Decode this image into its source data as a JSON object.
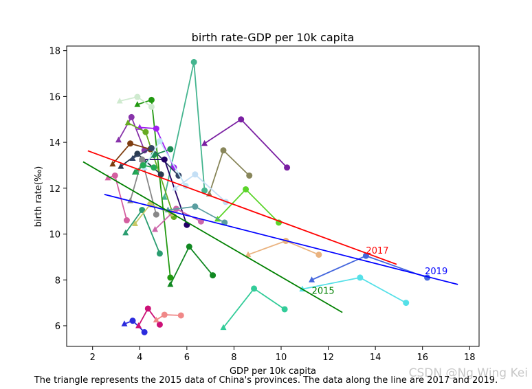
{
  "chart_data": {
    "type": "scatter",
    "title": "birth rate-GDP per 10k capita",
    "xlabel": "GDP per 10k capita",
    "ylabel": "birth rate(‰)",
    "xlim": [
      0.9,
      18.4
    ],
    "ylim": [
      5.1,
      18.2
    ],
    "xticks": [
      2,
      4,
      6,
      8,
      10,
      12,
      14,
      16,
      18
    ],
    "yticks": [
      6,
      8,
      10,
      12,
      14,
      16,
      18
    ],
    "grid": false,
    "caption": "The triangle represents the 2015 data of China's provinces. The data along the line are 2017 and 2019.",
    "watermark": "CSDN @Ng Wing Kei",
    "trend_lines": [
      {
        "label": "2017",
        "color": "#ff0000",
        "x": [
          1.8,
          14.9
        ],
        "y": [
          13.63,
          8.68
        ],
        "label_pos": [
          13.6,
          9.15
        ]
      },
      {
        "label": "2019",
        "color": "#0000ff",
        "x": [
          2.5,
          17.5
        ],
        "y": [
          11.73,
          7.8
        ],
        "label_pos": [
          16.1,
          8.25
        ]
      },
      {
        "label": "2015",
        "color": "#008000",
        "x": [
          1.6,
          12.6
        ],
        "y": [
          13.15,
          6.58
        ],
        "label_pos": [
          11.3,
          7.4
        ]
      }
    ],
    "provinces": [
      {
        "color": "#44b58f",
        "points": [
          [
            5.05,
            11.6
          ],
          [
            6.3,
            17.5
          ],
          [
            6.75,
            11.9
          ]
        ]
      },
      {
        "color": "#7a1fa2",
        "points": [
          [
            6.75,
            13.95
          ],
          [
            8.3,
            15.0
          ],
          [
            10.25,
            12.9
          ]
        ]
      },
      {
        "color": "#88865a",
        "points": [
          [
            6.95,
            11.75
          ],
          [
            7.55,
            13.65
          ],
          [
            8.65,
            12.55
          ]
        ]
      },
      {
        "color": "#5bd42a",
        "points": [
          [
            7.3,
            10.65
          ],
          [
            8.5,
            11.95
          ],
          [
            9.9,
            10.5
          ]
        ]
      },
      {
        "color": "#eab37f",
        "points": [
          [
            8.6,
            9.1
          ],
          [
            10.2,
            9.7
          ],
          [
            11.6,
            9.1
          ]
        ]
      },
      {
        "color": "#4466dd",
        "points": [
          [
            11.3,
            8.0
          ],
          [
            13.6,
            9.05
          ],
          [
            16.2,
            8.1
          ]
        ]
      },
      {
        "color": "#55e0e8",
        "points": [
          [
            10.9,
            7.6
          ],
          [
            13.35,
            8.1
          ],
          [
            15.3,
            7.0
          ]
        ]
      },
      {
        "color": "#33cc99",
        "points": [
          [
            7.55,
            5.92
          ],
          [
            8.85,
            7.62
          ],
          [
            10.15,
            6.72
          ]
        ]
      },
      {
        "color": "#2b2bdd",
        "points": [
          [
            3.35,
            6.08
          ],
          [
            3.7,
            6.22
          ],
          [
            4.2,
            5.72
          ]
        ]
      },
      {
        "color": "#cc1177",
        "points": [
          [
            3.95,
            6.0
          ],
          [
            4.35,
            6.75
          ],
          [
            4.85,
            6.05
          ]
        ]
      },
      {
        "color": "#f08888",
        "points": [
          [
            4.7,
            6.25
          ],
          [
            5.05,
            6.48
          ],
          [
            5.75,
            6.45
          ]
        ]
      },
      {
        "color": "#118822",
        "points": [
          [
            5.3,
            7.8
          ],
          [
            6.1,
            9.45
          ],
          [
            7.1,
            8.2
          ]
        ]
      },
      {
        "color": "#229911",
        "points": [
          [
            3.9,
            15.65
          ],
          [
            4.5,
            15.85
          ],
          [
            5.3,
            8.1
          ]
        ]
      },
      {
        "color": "#cfeacf",
        "points": [
          [
            3.15,
            15.8
          ],
          [
            3.9,
            15.98
          ],
          [
            4.5,
            15.55
          ]
        ]
      },
      {
        "color": "#8833aa",
        "points": [
          [
            3.1,
            14.1
          ],
          [
            3.65,
            15.1
          ],
          [
            4.2,
            13.65
          ]
        ]
      },
      {
        "color": "#a020f0",
        "points": [
          [
            4.0,
            14.65
          ],
          [
            4.7,
            14.6
          ],
          [
            5.45,
            12.9
          ]
        ]
      },
      {
        "color": "#66aa22",
        "points": [
          [
            3.5,
            14.85
          ],
          [
            4.25,
            14.45
          ],
          [
            5.45,
            10.75
          ]
        ]
      },
      {
        "color": "#7f3d10",
        "points": [
          [
            2.85,
            13.05
          ],
          [
            3.6,
            13.95
          ],
          [
            4.45,
            13.7
          ]
        ]
      },
      {
        "color": "#2a3b50",
        "points": [
          [
            3.2,
            12.95
          ],
          [
            3.9,
            13.5
          ],
          [
            4.9,
            12.6
          ]
        ]
      },
      {
        "color": "#334466",
        "points": [
          [
            3.7,
            13.3
          ],
          [
            4.5,
            13.75
          ],
          [
            5.65,
            12.55
          ]
        ]
      },
      {
        "color": "#220066",
        "points": [
          [
            4.1,
            13.25
          ],
          [
            5.05,
            13.25
          ],
          [
            6.0,
            10.4
          ]
        ]
      },
      {
        "color": "#1b8a52",
        "points": [
          [
            3.8,
            12.7
          ],
          [
            4.6,
            13.45
          ],
          [
            5.3,
            13.7
          ]
        ]
      },
      {
        "color": "#2a9d70",
        "points": [
          [
            3.4,
            10.05
          ],
          [
            4.1,
            11.05
          ],
          [
            4.85,
            9.15
          ]
        ]
      },
      {
        "color": "#d45fa0",
        "points": [
          [
            2.65,
            12.45
          ],
          [
            2.95,
            12.55
          ],
          [
            3.45,
            10.6
          ]
        ]
      },
      {
        "color": "#888888",
        "points": [
          [
            3.6,
            11.45
          ],
          [
            4.1,
            13.25
          ],
          [
            4.7,
            10.85
          ]
        ]
      },
      {
        "color": "#c0e6f7",
        "points": [
          [
            4.2,
            12.9
          ],
          [
            4.85,
            14.05
          ],
          [
            5.95,
            12.1
          ]
        ]
      },
      {
        "color": "#c4dff5",
        "points": [
          [
            5.5,
            12.0
          ],
          [
            6.35,
            12.6
          ],
          [
            7.65,
            11.4
          ]
        ]
      },
      {
        "color": "#c8c866",
        "points": [
          [
            3.8,
            10.45
          ],
          [
            4.45,
            11.3
          ],
          [
            5.35,
            10.9
          ]
        ]
      },
      {
        "color": "#cc66aa",
        "points": [
          [
            4.65,
            10.2
          ],
          [
            5.55,
            11.1
          ],
          [
            6.6,
            10.55
          ]
        ]
      },
      {
        "color": "#5a9ea0",
        "points": [
          [
            5.2,
            11.05
          ],
          [
            6.35,
            11.2
          ],
          [
            7.6,
            10.5
          ]
        ]
      },
      {
        "color": "#22aa55",
        "points": [
          [
            3.85,
            12.7
          ],
          [
            4.15,
            13.0
          ],
          [
            4.6,
            12.9
          ]
        ]
      }
    ]
  }
}
